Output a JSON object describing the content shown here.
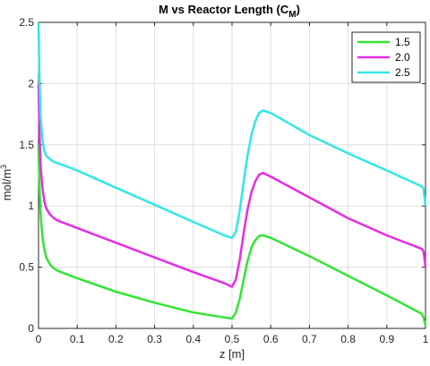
{
  "chart_data": {
    "type": "line",
    "title": "M vs Reactor Length (C",
    "title_subscript": "M",
    "title_close": ")",
    "xlabel": "z [m]",
    "ylabel": "mol/m",
    "ylabel_superscript": "3",
    "xlim": [
      0,
      1
    ],
    "ylim": [
      0,
      2.5
    ],
    "xticks": [
      "0",
      "0.1",
      "0.2",
      "0.3",
      "0.4",
      "0.5",
      "0.6",
      "0.7",
      "0.8",
      "0.9",
      "1"
    ],
    "yticks": [
      "0",
      "0.5",
      "1",
      "1.5",
      "2",
      "2.5"
    ],
    "grid": true,
    "legend_position": "top-right",
    "series": [
      {
        "name": "1.5",
        "color": "#33e433",
        "x": [
          0,
          0.002,
          0.005,
          0.01,
          0.015,
          0.02,
          0.03,
          0.04,
          0.05,
          0.1,
          0.2,
          0.3,
          0.4,
          0.48,
          0.5,
          0.51,
          0.52,
          0.53,
          0.54,
          0.55,
          0.56,
          0.57,
          0.58,
          0.6,
          0.7,
          0.8,
          0.9,
          0.99,
          0.995,
          1.0
        ],
        "y": [
          1.5,
          1.2,
          0.95,
          0.75,
          0.65,
          0.58,
          0.52,
          0.49,
          0.47,
          0.41,
          0.3,
          0.21,
          0.13,
          0.09,
          0.08,
          0.13,
          0.24,
          0.4,
          0.55,
          0.66,
          0.72,
          0.755,
          0.76,
          0.74,
          0.59,
          0.43,
          0.27,
          0.12,
          0.09,
          0.02
        ]
      },
      {
        "name": "2.0",
        "color": "#e52de5",
        "x": [
          0,
          0.002,
          0.005,
          0.01,
          0.015,
          0.02,
          0.03,
          0.04,
          0.05,
          0.1,
          0.2,
          0.3,
          0.4,
          0.48,
          0.5,
          0.51,
          0.52,
          0.53,
          0.54,
          0.55,
          0.56,
          0.57,
          0.58,
          0.6,
          0.7,
          0.8,
          0.9,
          0.99,
          0.995,
          1.0
        ],
        "y": [
          2.0,
          1.65,
          1.35,
          1.15,
          1.04,
          0.98,
          0.93,
          0.9,
          0.88,
          0.82,
          0.7,
          0.58,
          0.46,
          0.37,
          0.34,
          0.4,
          0.56,
          0.78,
          0.97,
          1.11,
          1.2,
          1.255,
          1.27,
          1.24,
          1.07,
          0.9,
          0.76,
          0.65,
          0.63,
          0.5
        ]
      },
      {
        "name": "2.5",
        "color": "#33e6e6",
        "x": [
          0,
          0.002,
          0.005,
          0.01,
          0.015,
          0.02,
          0.03,
          0.04,
          0.05,
          0.1,
          0.2,
          0.3,
          0.4,
          0.48,
          0.5,
          0.51,
          0.52,
          0.53,
          0.54,
          0.55,
          0.56,
          0.57,
          0.58,
          0.6,
          0.7,
          0.8,
          0.9,
          0.99,
          0.995,
          1.0
        ],
        "y": [
          2.5,
          2.1,
          1.75,
          1.55,
          1.45,
          1.41,
          1.38,
          1.36,
          1.35,
          1.29,
          1.15,
          1.01,
          0.87,
          0.76,
          0.74,
          0.79,
          0.96,
          1.2,
          1.41,
          1.58,
          1.69,
          1.76,
          1.78,
          1.76,
          1.58,
          1.43,
          1.29,
          1.16,
          1.14,
          1.0
        ]
      }
    ]
  }
}
